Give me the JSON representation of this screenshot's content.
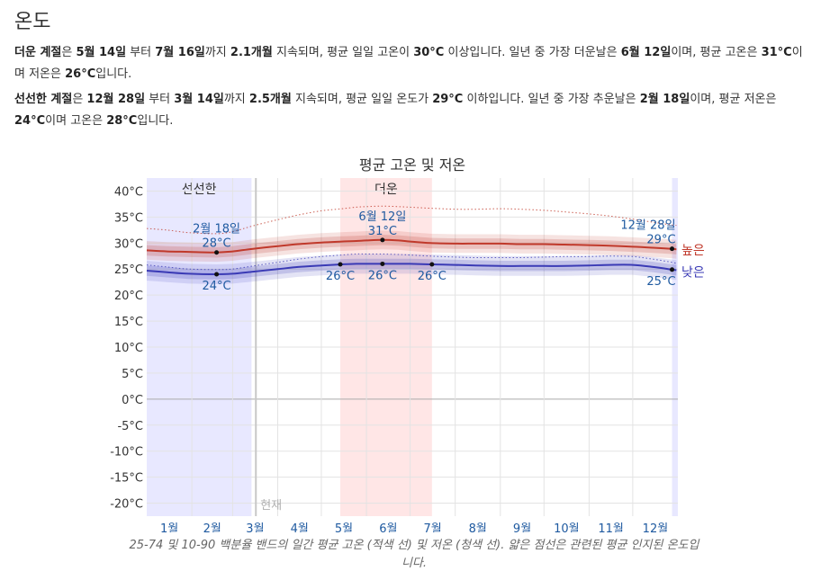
{
  "page": {
    "heading": "온도",
    "hot_season": {
      "t1": "더운 계절",
      "t2": "은 ",
      "t3": "5월 14일",
      "t4": " 부터 ",
      "t5": "7월 16일",
      "t6": "까지 ",
      "t7": "2.1개월",
      "t8": " 지속되며, 평균 일일 고온이 ",
      "t9": "30°C",
      "t10": " 이상입니다. 일년 중 가장 더운날은 ",
      "t11": "6월 12일",
      "t12": "이며, 평균 고온은 ",
      "t13": "31°C",
      "t14": "이며 저온은 ",
      "t15": "26°C",
      "t16": "입니다."
    },
    "cool_season": {
      "t1": "선선한 계절",
      "t2": "은 ",
      "t3": "12월 28일",
      "t4": " 부터 ",
      "t5": "3월 14일",
      "t6": "까지 ",
      "t7": "2.5개월",
      "t8": " 지속되며, 평균 일일 온도가 ",
      "t9": "29°C",
      "t10": " 이하입니다. 일년 중 가장 추운날은 ",
      "t11": "2월 18일",
      "t12": "이며, 평균 저온은 ",
      "t13": "24°C",
      "t14": "이며 고온은 ",
      "t15": "28°C",
      "t16": "입니다."
    },
    "caption": "25-74 및 10-90 백분율 밴드의 일간 평균 고온 (적색 선) 및 저온 (청색 선). 얇은 점선은 관련된 평균 인지된 온도입니다."
  },
  "chart_data": {
    "type": "line",
    "title": "평균 고온 및 저온",
    "ylim": [
      -22.5,
      42.5
    ],
    "y_ticks": [
      40,
      35,
      30,
      25,
      20,
      15,
      10,
      5,
      0,
      -5,
      -10,
      -15,
      -20
    ],
    "y_tick_labels": [
      "40°C",
      "35°C",
      "30°C",
      "25°C",
      "20°C",
      "15°C",
      "10°C",
      "5°C",
      "0°C",
      "-5°C",
      "-10°C",
      "-15°C",
      "-20°C"
    ],
    "months": [
      "1월",
      "2월",
      "3월",
      "4월",
      "5월",
      "6월",
      "7월",
      "8월",
      "9월",
      "10월",
      "11월",
      "12월"
    ],
    "x_days": [
      1,
      15,
      30,
      49,
      60,
      74,
      91,
      105,
      121,
      135,
      145,
      152,
      163,
      174,
      182,
      196,
      213,
      227,
      244,
      258,
      274,
      288,
      305,
      319,
      335,
      349,
      362,
      365
    ],
    "series": [
      {
        "name": "높은",
        "color": "#c0392b",
        "values": [
          28.6,
          28.4,
          28.3,
          28.2,
          28.4,
          28.9,
          29.4,
          29.8,
          30.1,
          30.3,
          30.4,
          30.5,
          30.6,
          30.5,
          30.3,
          30.0,
          29.9,
          29.9,
          29.9,
          29.8,
          29.8,
          29.7,
          29.6,
          29.5,
          29.3,
          29.1,
          28.9,
          28.8
        ],
        "band_25_75": [
          1.0,
          1.0,
          1.0,
          1.0,
          1.0,
          1.0,
          1.0,
          1.0,
          1.0,
          1.0,
          1.0,
          1.0,
          1.0,
          1.0,
          1.0,
          1.0,
          1.0,
          1.0,
          1.0,
          1.0,
          1.0,
          1.0,
          1.0,
          1.0,
          1.0,
          1.0,
          1.0,
          1.0
        ],
        "band_10_90": [
          1.8,
          1.8,
          1.8,
          1.8,
          1.8,
          1.8,
          1.8,
          1.8,
          1.8,
          1.8,
          1.8,
          1.8,
          1.8,
          1.8,
          1.8,
          1.8,
          1.8,
          1.8,
          1.8,
          1.8,
          1.8,
          1.8,
          1.8,
          1.8,
          1.8,
          1.8,
          1.8,
          1.8
        ],
        "perceived": [
          32.8,
          32.5,
          32.0,
          31.8,
          32.2,
          33.3,
          34.5,
          35.4,
          36.2,
          36.6,
          36.9,
          37.0,
          37.1,
          37.0,
          36.9,
          36.7,
          36.5,
          36.5,
          36.6,
          36.5,
          36.3,
          36.0,
          35.6,
          35.2,
          34.6,
          34.0,
          33.5,
          33.4
        ]
      },
      {
        "name": "낮은",
        "color": "#3a3ab5",
        "values": [
          24.7,
          24.4,
          24.1,
          24.0,
          24.1,
          24.5,
          25.0,
          25.4,
          25.7,
          25.9,
          26.0,
          26.0,
          26.0,
          26.0,
          26.0,
          25.9,
          25.8,
          25.7,
          25.6,
          25.6,
          25.6,
          25.6,
          25.7,
          25.8,
          25.8,
          25.4,
          24.9,
          24.8
        ],
        "band_25_75": [
          1.0,
          1.0,
          1.0,
          1.0,
          1.0,
          1.0,
          1.0,
          1.0,
          1.0,
          1.0,
          1.0,
          1.0,
          1.0,
          1.0,
          1.0,
          1.0,
          1.0,
          1.0,
          1.0,
          1.0,
          1.0,
          1.0,
          1.0,
          1.0,
          1.0,
          1.0,
          1.0,
          1.0
        ],
        "band_10_90": [
          1.9,
          1.9,
          1.9,
          1.9,
          1.9,
          1.9,
          1.9,
          1.9,
          1.9,
          1.9,
          1.9,
          1.9,
          1.9,
          1.9,
          1.9,
          1.9,
          1.9,
          1.9,
          1.9,
          1.9,
          1.9,
          1.9,
          1.9,
          1.9,
          1.9,
          1.9,
          1.9,
          1.9
        ],
        "perceived": [
          25.8,
          25.4,
          25.0,
          24.9,
          25.0,
          25.6,
          26.3,
          26.9,
          27.4,
          27.7,
          27.9,
          27.9,
          27.9,
          27.8,
          27.7,
          27.5,
          27.3,
          27.2,
          27.2,
          27.2,
          27.3,
          27.4,
          27.4,
          27.5,
          27.4,
          26.9,
          26.3,
          26.1
        ]
      }
    ],
    "seasons": [
      {
        "name": "선선한",
        "start_day": 1,
        "end_day": 73,
        "color": "#e8e8ff"
      },
      {
        "name": "더운",
        "start_day": 134,
        "end_day": 197,
        "color": "#ffe6e6"
      },
      {
        "name": "",
        "start_day": 362,
        "end_day": 366,
        "color": "#e8e8ff"
      }
    ],
    "current_day": 76,
    "current_label": "현재",
    "annotations": [
      {
        "day": 49,
        "value": 28.2,
        "series": "높은",
        "lines": [
          "2월 18일",
          "28°C"
        ],
        "pos": "above"
      },
      {
        "day": 49,
        "value": 24.0,
        "series": "낮은",
        "lines": [
          "24°C"
        ],
        "pos": "below"
      },
      {
        "day": 134,
        "value": 25.9,
        "series": "낮은",
        "lines": [
          "26°C"
        ],
        "pos": "below"
      },
      {
        "day": 163,
        "value": 30.6,
        "series": "높은",
        "lines": [
          "6월 12일",
          "31°C"
        ],
        "pos": "above"
      },
      {
        "day": 163,
        "value": 26.0,
        "series": "낮은",
        "lines": [
          "26°C"
        ],
        "pos": "below"
      },
      {
        "day": 197,
        "value": 25.9,
        "series": "낮은",
        "lines": [
          "26°C"
        ],
        "pos": "below"
      },
      {
        "day": 362,
        "value": 28.9,
        "series": "높은",
        "lines": [
          "12월 28일",
          "29°C"
        ],
        "pos": "above"
      },
      {
        "day": 362,
        "value": 24.9,
        "series": "낮은",
        "lines": [
          "25°C"
        ],
        "pos": "below"
      }
    ],
    "grid": true
  }
}
